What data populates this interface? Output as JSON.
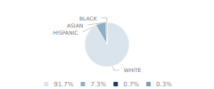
{
  "chart_data": {
    "type": "pie",
    "categories": [
      "WHITE",
      "HISPANIC",
      "ASIAN",
      "BLACK"
    ],
    "values": [
      91.7,
      7.3,
      0.7,
      0.3
    ],
    "value_labels": [
      "91.7%",
      "7.3%",
      "0.7%",
      "0.3%"
    ],
    "colors": [
      "#d9e4ec",
      "#8fafc4",
      "#1e3a5f",
      "#7a9db5"
    ],
    "legend": "bottom"
  }
}
